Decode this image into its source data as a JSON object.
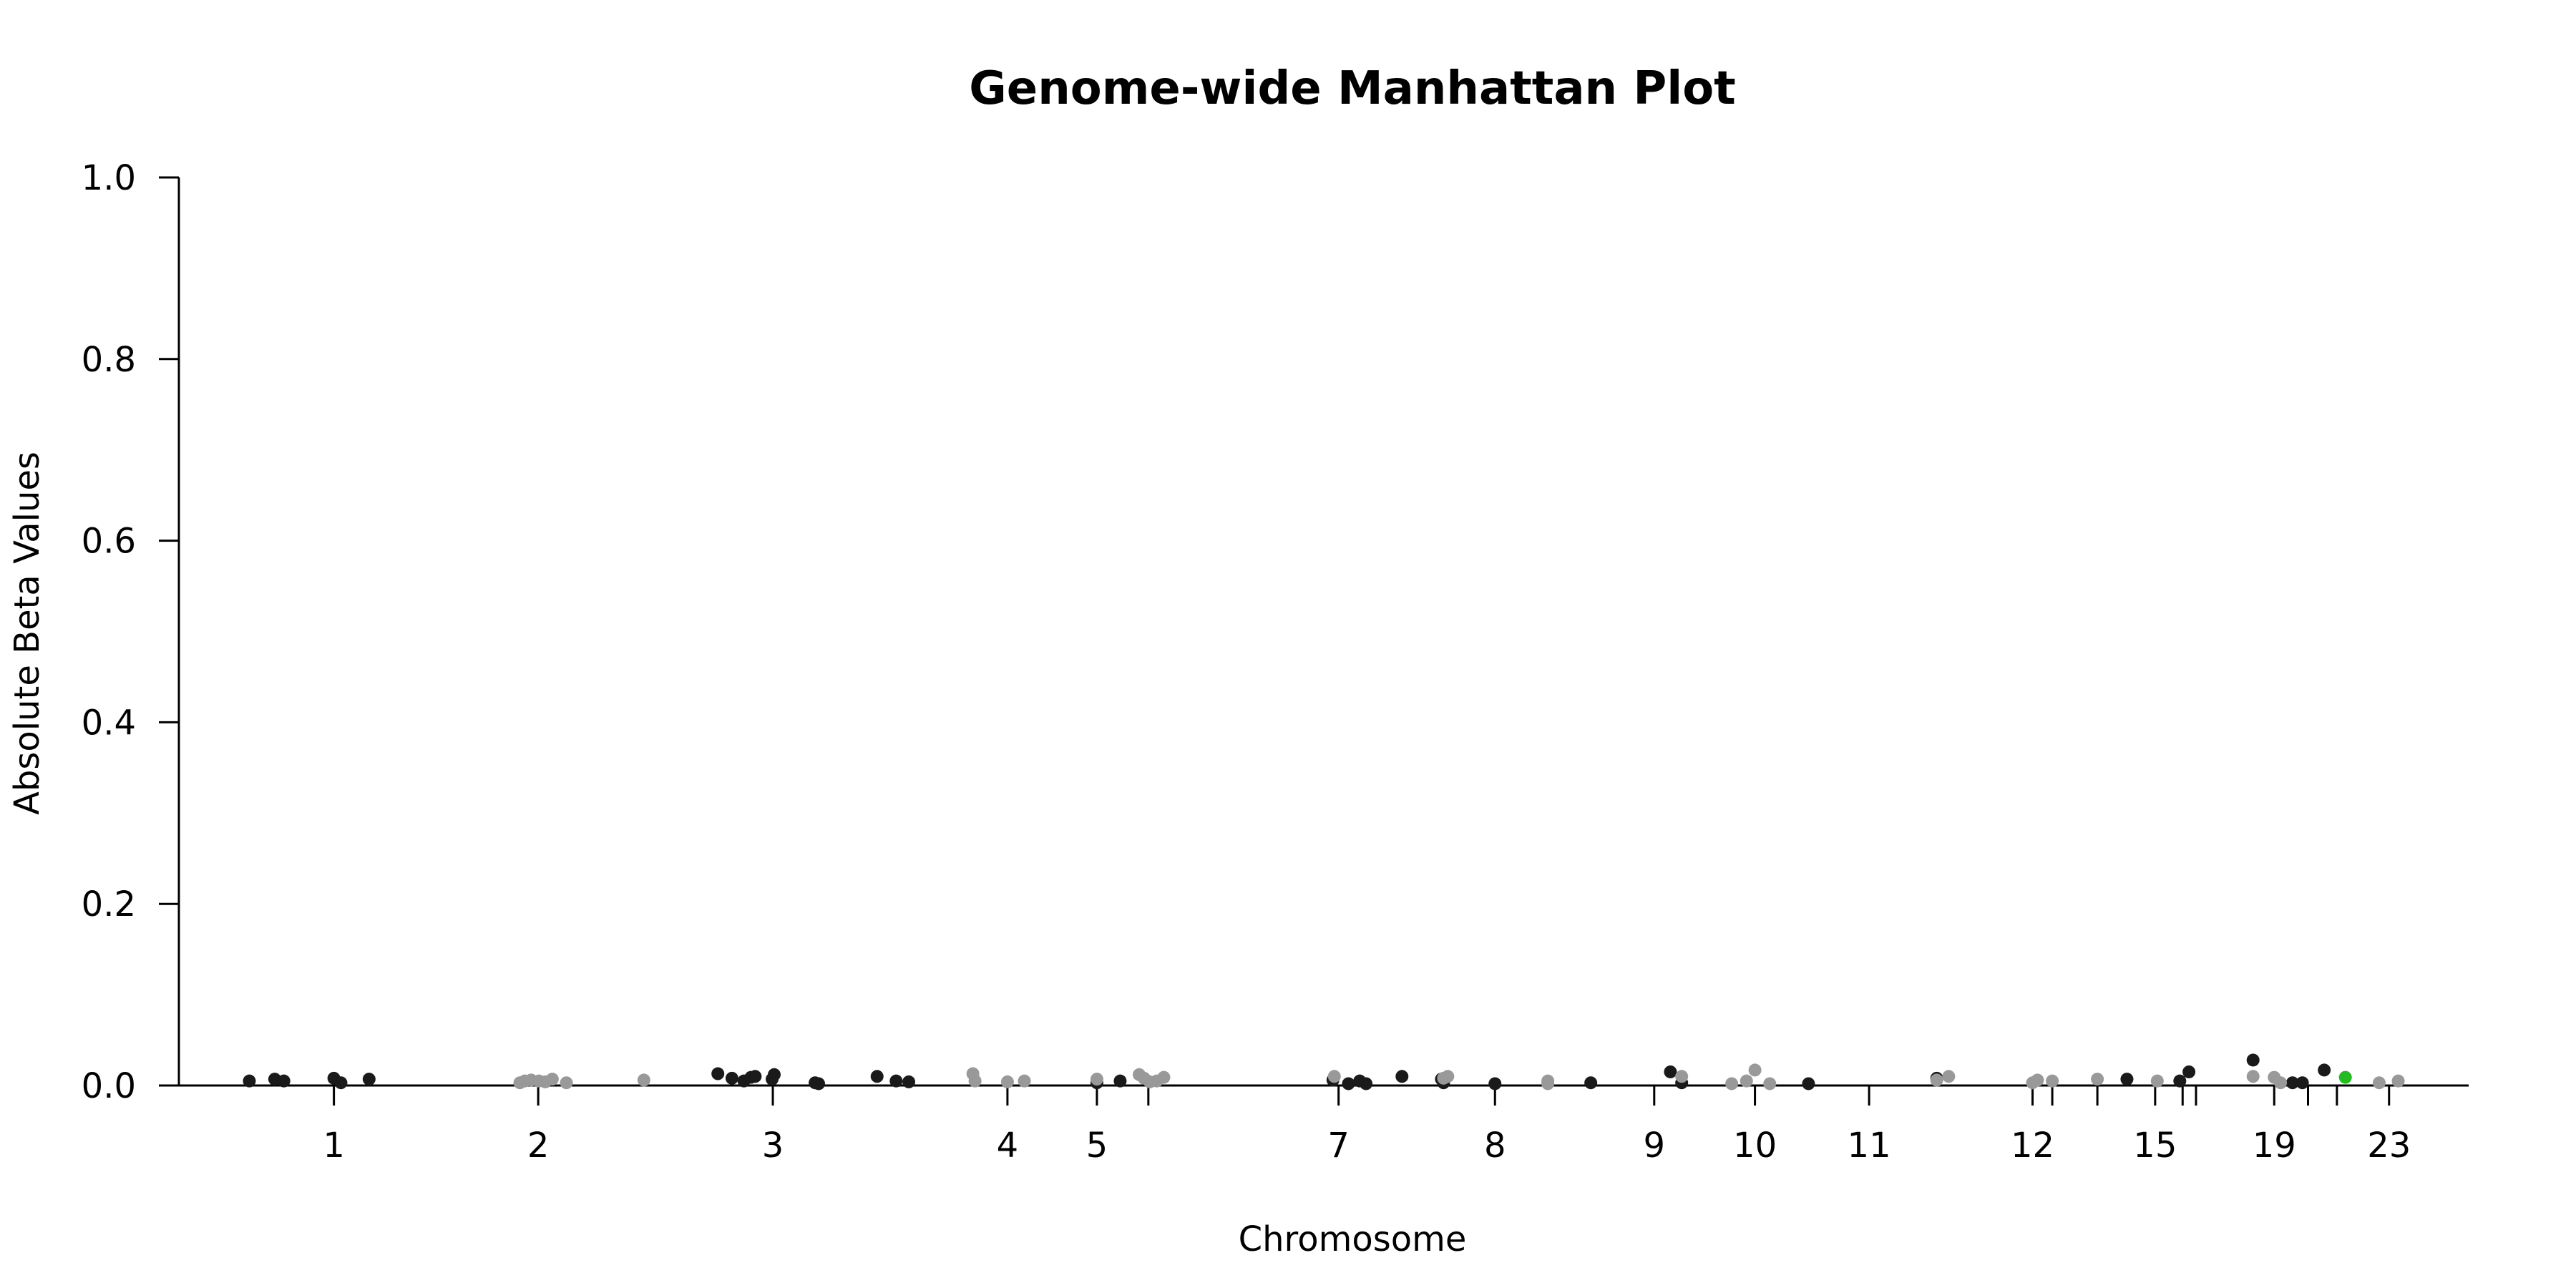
{
  "chart_data": {
    "type": "scatter",
    "title": "Genome-wide Manhattan Plot",
    "xlabel": "Chromosome",
    "ylabel": "Absolute Beta Values",
    "ylim": [
      0,
      1.0
    ],
    "yticks": [
      "0.0",
      "0.2",
      "0.4",
      "0.6",
      "0.8",
      "1.0"
    ],
    "xticks": [
      {
        "label": "1",
        "pos": 220
      },
      {
        "label": "2",
        "pos": 510
      },
      {
        "label": "3",
        "pos": 843
      },
      {
        "label": "4",
        "pos": 1176
      },
      {
        "label": "5",
        "pos": 1303
      },
      {
        "label": "",
        "pos": 1376
      },
      {
        "label": "7",
        "pos": 1646
      },
      {
        "label": "8",
        "pos": 1868
      },
      {
        "label": "9",
        "pos": 2094
      },
      {
        "label": "10",
        "pos": 2237
      },
      {
        "label": "11",
        "pos": 2399
      },
      {
        "label": "12",
        "pos": 2631
      },
      {
        "label": "",
        "pos": 2659
      },
      {
        "label": "",
        "pos": 2723
      },
      {
        "label": "15",
        "pos": 2805
      },
      {
        "label": "",
        "pos": 2844
      },
      {
        "label": "",
        "pos": 2863
      },
      {
        "label": "19",
        "pos": 2974
      },
      {
        "label": "",
        "pos": 3022
      },
      {
        "label": "",
        "pos": 3063
      },
      {
        "label": "23",
        "pos": 3137
      }
    ],
    "xlim": [
      0,
      3250
    ],
    "grid": false,
    "colors": {
      "dark": "#1a1a1a",
      "light": "#999999",
      "highlight": "#22bb22"
    },
    "series": [
      {
        "color": "dark",
        "points": [
          [
            100,
            0.005
          ],
          [
            136,
            0.007
          ],
          [
            149,
            0.005
          ],
          [
            220,
            0.008
          ],
          [
            230,
            0.003
          ],
          [
            270,
            0.007
          ],
          [
            765,
            0.013
          ],
          [
            785,
            0.008
          ],
          [
            802,
            0.005
          ],
          [
            812,
            0.009
          ],
          [
            818,
            0.01
          ],
          [
            842,
            0.007
          ],
          [
            845,
            0.012
          ],
          [
            903,
            0.003
          ],
          [
            908,
            0.002
          ],
          [
            991,
            0.01
          ],
          [
            1018,
            0.005
          ],
          [
            1036,
            0.004
          ],
          [
            1303,
            0.003
          ],
          [
            1336,
            0.005
          ],
          [
            1638,
            0.006
          ],
          [
            1660,
            0.002
          ],
          [
            1676,
            0.005
          ],
          [
            1685,
            0.002
          ],
          [
            1736,
            0.01
          ],
          [
            1792,
            0.007
          ],
          [
            1795,
            0.003
          ],
          [
            1868,
            0.002
          ],
          [
            2004,
            0.003
          ],
          [
            2117,
            0.015
          ],
          [
            2133,
            0.003
          ],
          [
            2313,
            0.002
          ],
          [
            2495,
            0.008
          ],
          [
            2765,
            0.007
          ],
          [
            2840,
            0.005
          ],
          [
            2853,
            0.015
          ],
          [
            2944,
            0.028
          ],
          [
            3000,
            0.003
          ],
          [
            3014,
            0.003
          ],
          [
            3045,
            0.017
          ]
        ]
      },
      {
        "color": "light",
        "points": [
          [
            484,
            0.003
          ],
          [
            491,
            0.005
          ],
          [
            500,
            0.006
          ],
          [
            511,
            0.005
          ],
          [
            520,
            0.004
          ],
          [
            530,
            0.007
          ],
          [
            550,
            0.003
          ],
          [
            660,
            0.006
          ],
          [
            1127,
            0.013
          ],
          [
            1130,
            0.005
          ],
          [
            1176,
            0.004
          ],
          [
            1200,
            0.005
          ],
          [
            1303,
            0.007
          ],
          [
            1363,
            0.012
          ],
          [
            1370,
            0.008
          ],
          [
            1378,
            0.004
          ],
          [
            1388,
            0.005
          ],
          [
            1398,
            0.009
          ],
          [
            1640,
            0.01
          ],
          [
            1795,
            0.008
          ],
          [
            1801,
            0.01
          ],
          [
            1943,
            0.005
          ],
          [
            1943,
            0.002
          ],
          [
            2133,
            0.01
          ],
          [
            2204,
            0.002
          ],
          [
            2225,
            0.005
          ],
          [
            2237,
            0.017
          ],
          [
            2258,
            0.002
          ],
          [
            2495,
            0.006
          ],
          [
            2512,
            0.01
          ],
          [
            2631,
            0.003
          ],
          [
            2638,
            0.006
          ],
          [
            2659,
            0.005
          ],
          [
            2723,
            0.007
          ],
          [
            2808,
            0.005
          ],
          [
            2944,
            0.01
          ],
          [
            2974,
            0.009
          ],
          [
            2983,
            0.003
          ],
          [
            3123,
            0.003
          ],
          [
            3150,
            0.005
          ]
        ]
      },
      {
        "color": "highlight",
        "points": [
          [
            3075,
            0.009
          ]
        ]
      }
    ]
  }
}
